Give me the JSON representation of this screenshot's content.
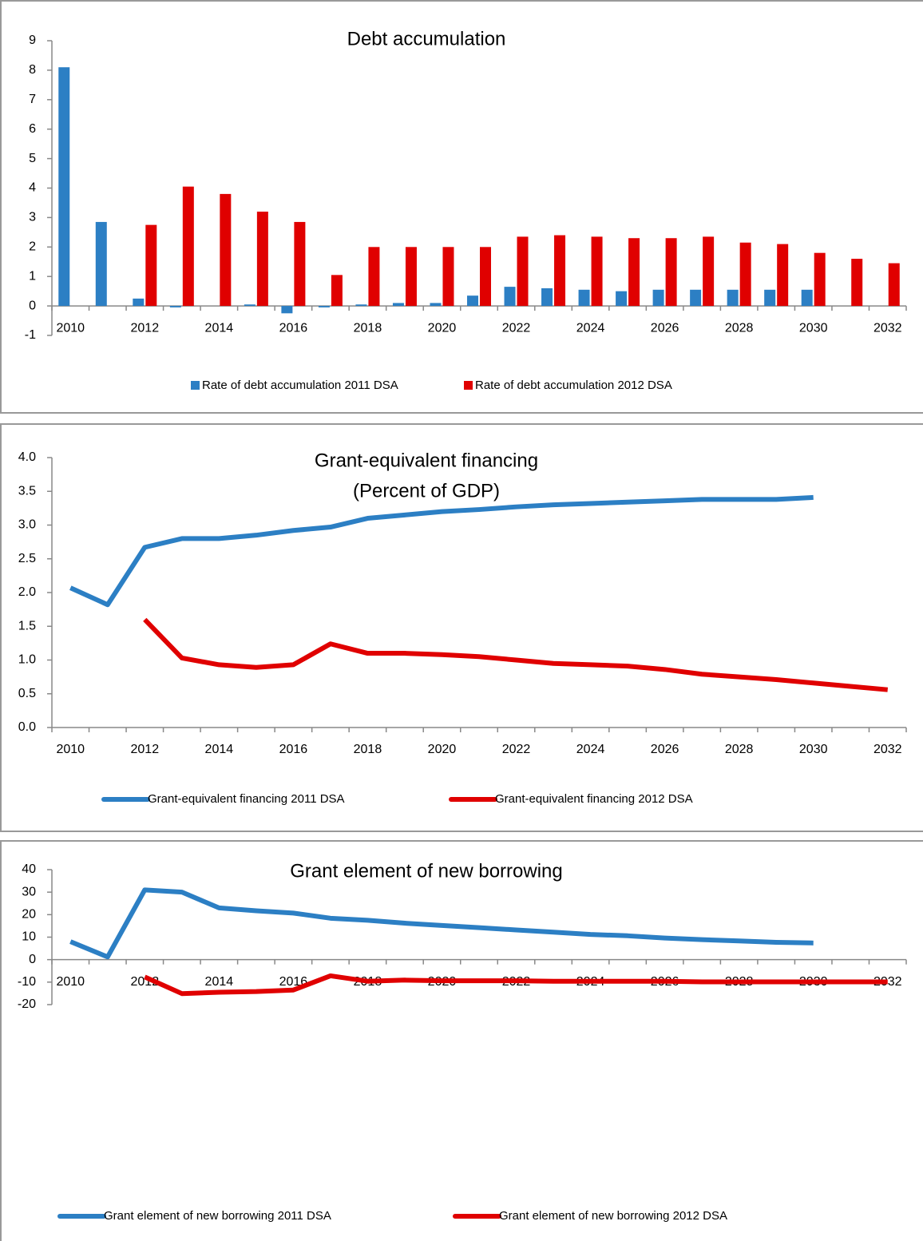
{
  "chart_data": [
    {
      "type": "bar",
      "title": "Debt accumulation",
      "categories": [
        "2010",
        null,
        "2012",
        null,
        "2014",
        null,
        "2016",
        null,
        "2018",
        null,
        "2020",
        null,
        "2022",
        null,
        "2024",
        null,
        "2026",
        null,
        "2028",
        null,
        "2030",
        null,
        "2032"
      ],
      "series": [
        {
          "name": "Rate of debt accumulation 2011 DSA",
          "color": "#2c7fc4",
          "values": [
            8.1,
            2.85,
            0.25,
            -0.05,
            0,
            0.05,
            -0.25,
            -0.05,
            0.05,
            0.1,
            0.1,
            0.35,
            0.65,
            0.6,
            0.55,
            0.5,
            0.55,
            0.55,
            0.55,
            0.55,
            0.55,
            null,
            null
          ]
        },
        {
          "name": "Rate of debt accumulation 2012 DSA",
          "color": "#e00000",
          "values": [
            null,
            null,
            2.75,
            4.05,
            3.8,
            3.2,
            2.85,
            1.05,
            2.0,
            2.0,
            2.0,
            2.0,
            2.35,
            2.4,
            2.35,
            2.3,
            2.3,
            2.35,
            2.15,
            2.1,
            1.8,
            1.6,
            1.45
          ]
        }
      ],
      "ylim": [
        -1,
        9
      ],
      "yticks": [
        -1,
        0,
        1,
        2,
        3,
        4,
        5,
        6,
        7,
        8,
        9
      ]
    },
    {
      "type": "line",
      "title": "Grant-equivalent financing",
      "subtitle": "(Percent of GDP)",
      "categories": [
        "2010",
        null,
        "2012",
        null,
        "2014",
        null,
        "2016",
        null,
        "2018",
        null,
        "2020",
        null,
        "2022",
        null,
        "2024",
        null,
        "2026",
        null,
        "2028",
        null,
        "2030",
        null,
        "2032"
      ],
      "series": [
        {
          "name": "Grant-equivalent financing 2011 DSA",
          "color": "#2c7fc4",
          "values": [
            2.07,
            1.82,
            2.67,
            2.8,
            2.8,
            2.85,
            2.92,
            2.97,
            3.1,
            3.15,
            3.2,
            3.23,
            3.27,
            3.3,
            3.32,
            3.34,
            3.36,
            3.38,
            3.38,
            3.38,
            3.41,
            null,
            null
          ]
        },
        {
          "name": "Grant-equivalent financing 2012 DSA",
          "color": "#e00000",
          "values": [
            null,
            null,
            1.6,
            1.03,
            0.93,
            0.89,
            0.93,
            1.24,
            1.1,
            1.1,
            1.08,
            1.05,
            1.0,
            0.95,
            0.93,
            0.91,
            0.86,
            0.79,
            0.75,
            0.71,
            0.66,
            0.61,
            0.56
          ]
        }
      ],
      "ylim": [
        0,
        4
      ],
      "yticks": [
        {
          "value": 0,
          "label": "0.0"
        },
        {
          "value": 0.5,
          "label": "0.5"
        },
        {
          "value": 1,
          "label": "1.0"
        },
        {
          "value": 1.5,
          "label": "1.5"
        },
        {
          "value": 2,
          "label": "2.0"
        },
        {
          "value": 2.5,
          "label": "2.5"
        },
        {
          "value": 3,
          "label": "3.0"
        },
        {
          "value": 3.5,
          "label": "3.5"
        },
        {
          "value": 4,
          "label": "4.0"
        }
      ]
    },
    {
      "type": "line",
      "title": "Grant element of new borrowing",
      "categories": [
        "2010",
        null,
        "2012",
        null,
        "2014",
        null,
        "2016",
        null,
        "2018",
        null,
        "2020",
        null,
        "2022",
        null,
        "2024",
        null,
        "2026",
        null,
        "2028",
        null,
        "2030",
        null,
        "2032"
      ],
      "series": [
        {
          "name": "Grant element of new borrowing 2011 DSA",
          "color": "#2c7fc4",
          "values": [
            8,
            1.2,
            31,
            30,
            23,
            21.7,
            20.7,
            18.4,
            17.5,
            16.2,
            15.2,
            14.2,
            13.2,
            12.2,
            11.2,
            10.6,
            9.6,
            8.9,
            8.3,
            7.7,
            7.4,
            null,
            null
          ]
        },
        {
          "name": "Grant element of new borrowing 2012 DSA",
          "color": "#e00000",
          "values": [
            null,
            null,
            -7.7,
            -15.1,
            -14.5,
            -14.2,
            -13.5,
            -7.2,
            -9.6,
            -9.1,
            -9.4,
            -9.4,
            -9.4,
            -9.6,
            -9.6,
            -9.6,
            -9.6,
            -9.9,
            -9.9,
            -9.9,
            -9.9,
            -9.9,
            -9.9
          ]
        }
      ],
      "ylim": [
        -20,
        40
      ],
      "yticks": [
        -20,
        -10,
        0,
        10,
        20,
        30,
        40
      ]
    }
  ]
}
